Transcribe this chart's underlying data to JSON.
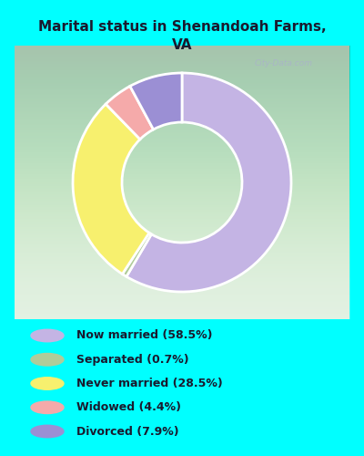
{
  "title": "Marital status in Shenandoah Farms,\nVA",
  "slices": [
    58.5,
    0.7,
    28.5,
    4.4,
    7.9
  ],
  "labels": [
    "Now married (58.5%)",
    "Separated (0.7%)",
    "Never married (28.5%)",
    "Widowed (4.4%)",
    "Divorced (7.9%)"
  ],
  "colors": [
    "#c4b4e4",
    "#b0cc9a",
    "#f7f06e",
    "#f5aaaa",
    "#9b8fd4"
  ],
  "bg_cyan": "#00ffff",
  "bg_chart_top": "#e8f0e0",
  "bg_chart_bottom": "#d0e8d0",
  "title_color": "#1a1a2e",
  "legend_text_color": "#1a1a2e",
  "watermark": "City-Data.com",
  "donut_width": 0.45,
  "startangle": 90
}
